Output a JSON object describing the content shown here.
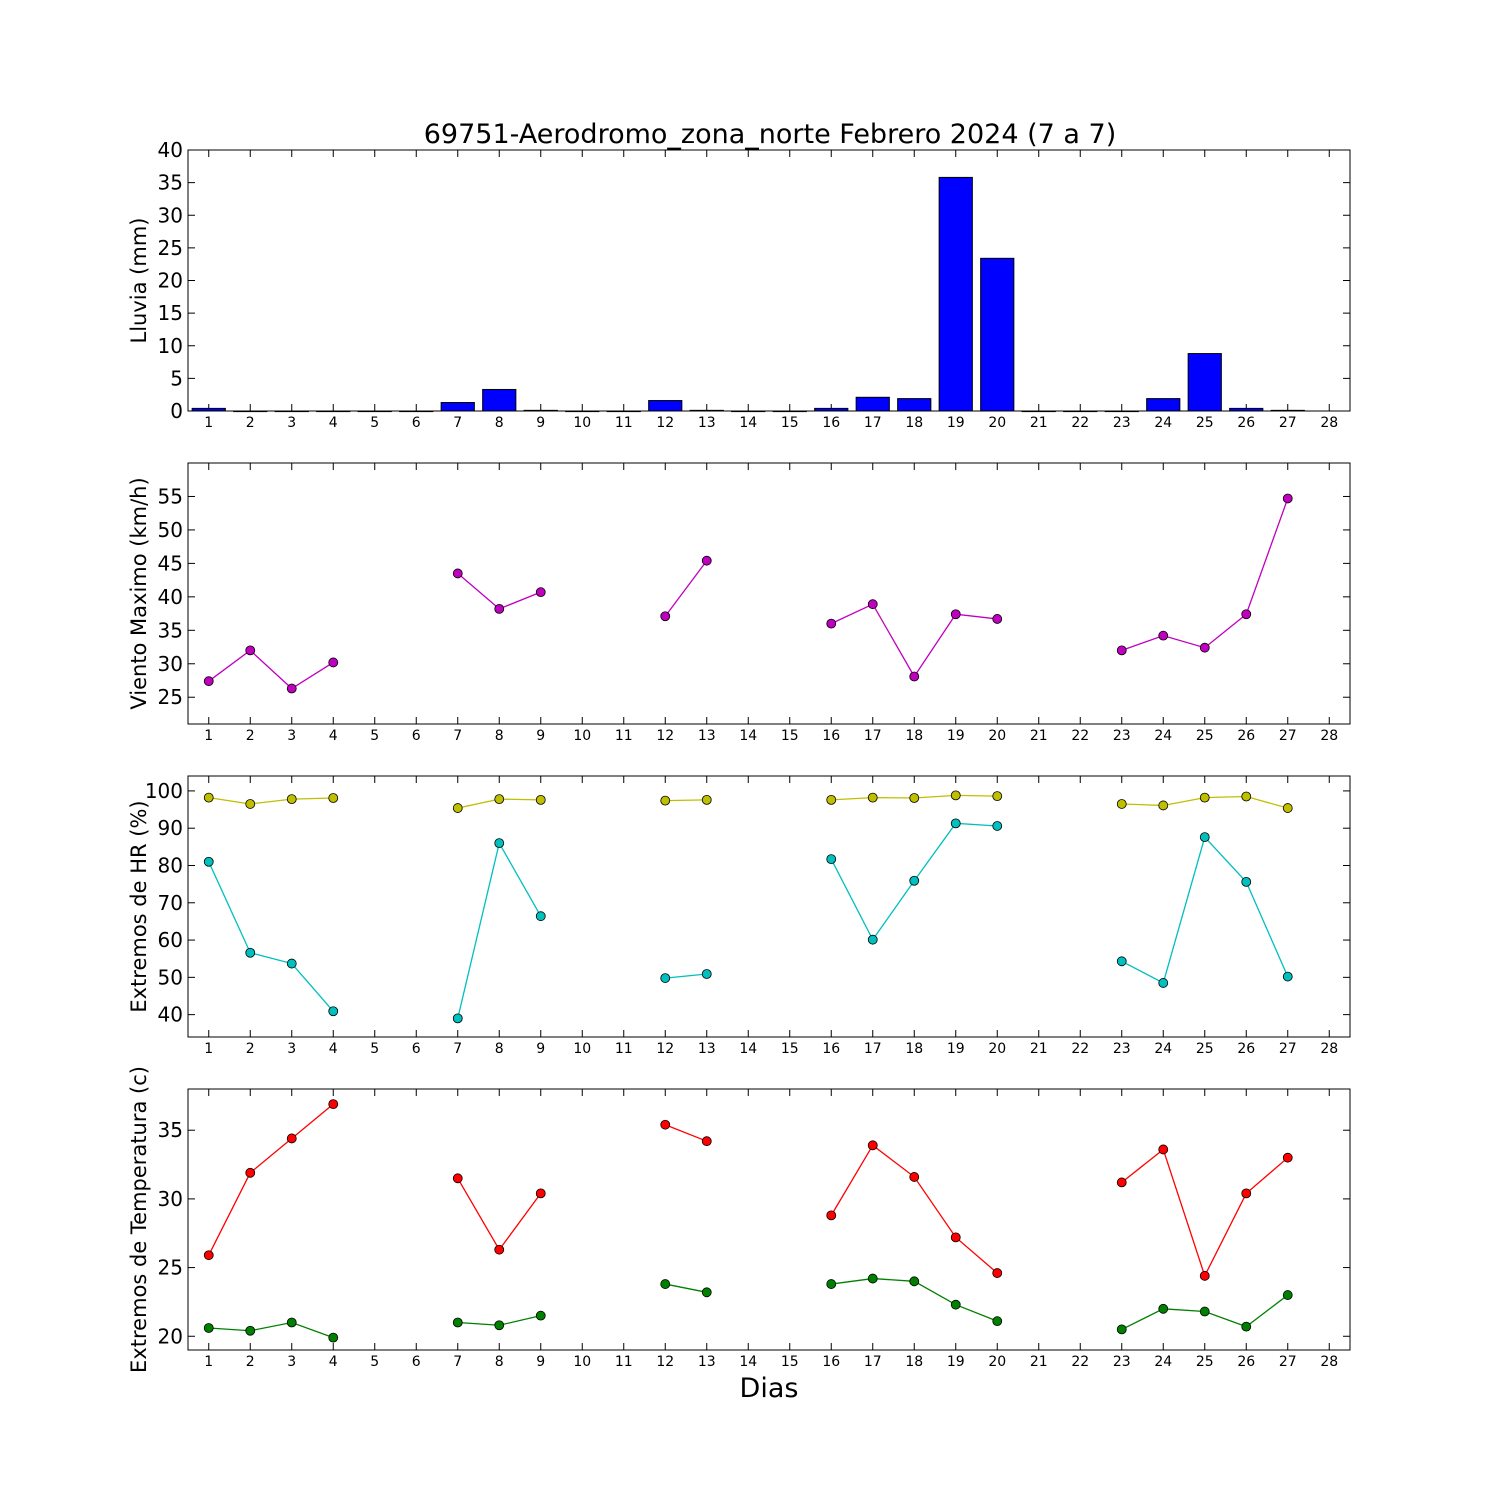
{
  "chart_data": [
    {
      "type": "bar",
      "title": "69751-Aerodromo_zona_norte Febrero 2024  (7 a 7)",
      "ylabel": "Lluvia (mm)",
      "xlabel": "",
      "ylim": [
        0,
        40
      ],
      "yticks": [
        0,
        5,
        10,
        15,
        20,
        25,
        30,
        35,
        40
      ],
      "x_tick_labels": [
        "1",
        "2",
        "3",
        "4",
        "5",
        "6",
        "7",
        "8",
        "9",
        "10",
        "11",
        "12",
        "13",
        "14",
        "15",
        "16",
        "17",
        "18",
        "19",
        "20",
        "21",
        "22",
        "23",
        "24",
        "25",
        "26",
        "27",
        "28"
      ],
      "bar_color": "#0000ff",
      "grid": false,
      "categories": [
        1,
        2,
        3,
        4,
        5,
        6,
        7,
        8,
        9,
        10,
        11,
        12,
        13,
        14,
        15,
        16,
        17,
        18,
        19,
        20,
        21,
        22,
        23,
        24,
        25,
        26,
        27
      ],
      "values": [
        0.4,
        0,
        0,
        0,
        0,
        0,
        1.3,
        3.3,
        0.1,
        0,
        0,
        1.6,
        0.1,
        0,
        0,
        0.4,
        2.1,
        1.9,
        35.8,
        23.4,
        0,
        0,
        0,
        1.9,
        8.8,
        0.4,
        0.1
      ]
    },
    {
      "type": "line",
      "title": "",
      "ylabel": "Viento Maximo (km/h)",
      "xlabel": "",
      "ylim": [
        21,
        60
      ],
      "yticks": [
        25,
        30,
        35,
        40,
        45,
        50,
        55
      ],
      "x_tick_labels": [
        "1",
        "2",
        "3",
        "4",
        "5",
        "6",
        "7",
        "8",
        "9",
        "10",
        "11",
        "12",
        "13",
        "14",
        "15",
        "16",
        "17",
        "18",
        "19",
        "20",
        "21",
        "22",
        "23",
        "24",
        "25",
        "26",
        "27",
        "28"
      ],
      "grid": false,
      "x": [
        1,
        2,
        3,
        4,
        5,
        6,
        7,
        8,
        9,
        10,
        11,
        12,
        13,
        14,
        15,
        16,
        17,
        18,
        19,
        20,
        21,
        22,
        23,
        24,
        25,
        26,
        27
      ],
      "series": [
        {
          "color": "#bf00bf",
          "values": [
            27.4,
            32.0,
            26.3,
            30.2,
            null,
            null,
            43.5,
            38.2,
            40.7,
            null,
            null,
            37.1,
            45.4,
            null,
            null,
            36.0,
            38.9,
            28.1,
            37.4,
            36.7,
            null,
            null,
            32.0,
            34.2,
            32.4,
            37.4,
            54.7
          ]
        }
      ]
    },
    {
      "type": "line",
      "title": "",
      "ylabel": "Extremos de HR (%)",
      "xlabel": "",
      "ylim": [
        34,
        104
      ],
      "yticks": [
        40,
        50,
        60,
        70,
        80,
        90,
        100
      ],
      "x_tick_labels": [
        "1",
        "2",
        "3",
        "4",
        "5",
        "6",
        "7",
        "8",
        "9",
        "10",
        "11",
        "12",
        "13",
        "14",
        "15",
        "16",
        "17",
        "18",
        "19",
        "20",
        "21",
        "22",
        "23",
        "24",
        "25",
        "26",
        "27",
        "28"
      ],
      "grid": false,
      "x": [
        1,
        2,
        3,
        4,
        5,
        6,
        7,
        8,
        9,
        10,
        11,
        12,
        13,
        14,
        15,
        16,
        17,
        18,
        19,
        20,
        21,
        22,
        23,
        24,
        25,
        26,
        27
      ],
      "series": [
        {
          "color": "#bfbf00",
          "values": [
            98.2,
            96.5,
            97.8,
            98.1,
            null,
            null,
            95.4,
            97.8,
            97.6,
            null,
            null,
            97.4,
            97.6,
            null,
            null,
            97.6,
            98.2,
            98.1,
            98.8,
            98.6,
            null,
            null,
            96.5,
            96.1,
            98.2,
            98.5,
            95.4
          ]
        },
        {
          "color": "#00bfbf",
          "values": [
            81.0,
            56.6,
            53.7,
            40.9,
            null,
            null,
            39.0,
            86.0,
            66.4,
            null,
            null,
            49.8,
            50.9,
            null,
            null,
            81.7,
            60.1,
            75.9,
            91.3,
            90.6,
            null,
            null,
            54.3,
            48.5,
            87.6,
            75.6,
            50.2
          ]
        }
      ]
    },
    {
      "type": "line",
      "title": "",
      "ylabel": "Extremos de Temperatura (c)",
      "xlabel": "Dias",
      "ylim": [
        19,
        38
      ],
      "yticks": [
        20,
        25,
        30,
        35
      ],
      "x_tick_labels": [
        "1",
        "2",
        "3",
        "4",
        "5",
        "6",
        "7",
        "8",
        "9",
        "10",
        "11",
        "12",
        "13",
        "14",
        "15",
        "16",
        "17",
        "18",
        "19",
        "20",
        "21",
        "22",
        "23",
        "24",
        "25",
        "26",
        "27",
        "28"
      ],
      "grid": false,
      "x": [
        1,
        2,
        3,
        4,
        5,
        6,
        7,
        8,
        9,
        10,
        11,
        12,
        13,
        14,
        15,
        16,
        17,
        18,
        19,
        20,
        21,
        22,
        23,
        24,
        25,
        26,
        27
      ],
      "series": [
        {
          "color": "#ff0000",
          "values": [
            25.9,
            31.9,
            34.4,
            36.9,
            null,
            null,
            31.5,
            26.3,
            30.4,
            null,
            null,
            35.4,
            34.2,
            null,
            null,
            28.8,
            33.9,
            31.6,
            27.2,
            24.6,
            null,
            null,
            31.2,
            33.6,
            24.4,
            30.4,
            33.0
          ]
        },
        {
          "color": "#008000",
          "values": [
            20.6,
            20.4,
            21.0,
            19.9,
            null,
            null,
            21.0,
            20.8,
            21.5,
            null,
            null,
            23.8,
            23.2,
            null,
            null,
            23.8,
            24.2,
            24.0,
            22.3,
            21.1,
            null,
            null,
            20.5,
            22.0,
            21.8,
            20.7,
            23.0
          ]
        }
      ]
    }
  ]
}
